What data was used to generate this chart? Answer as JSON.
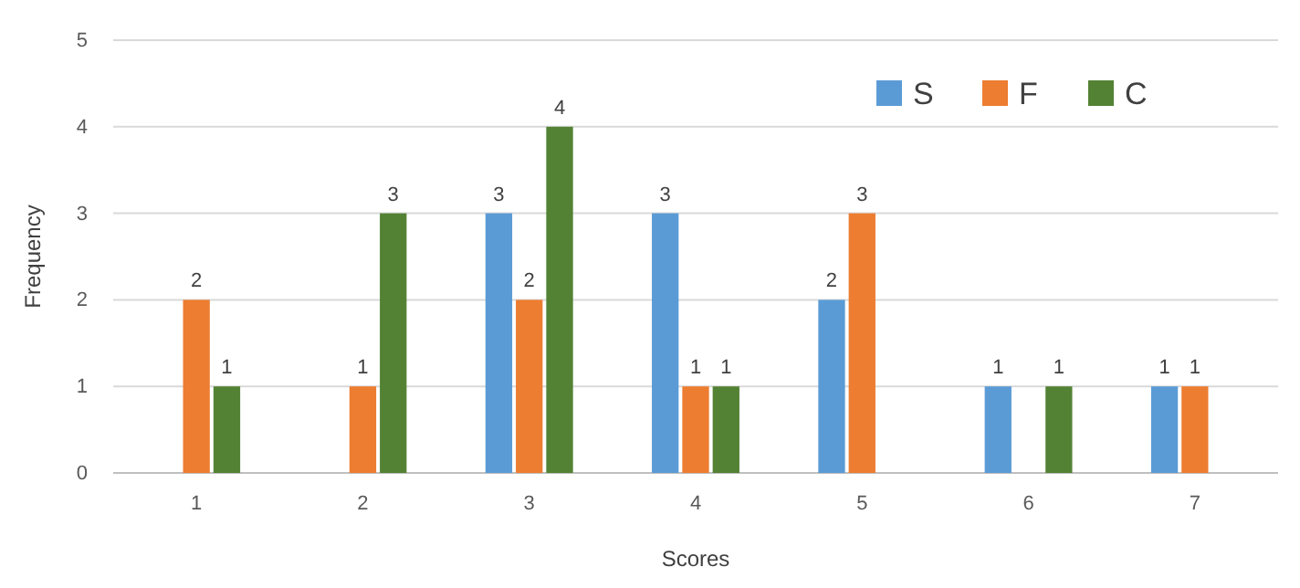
{
  "chart_data": {
    "type": "bar",
    "xlabel": "Scores",
    "ylabel": "Frequency",
    "categories": [
      "1",
      "2",
      "3",
      "4",
      "5",
      "6",
      "7"
    ],
    "series": [
      {
        "name": "S",
        "color": "#5b9bd5",
        "values": [
          null,
          null,
          3,
          3,
          2,
          1,
          1
        ]
      },
      {
        "name": "F",
        "color": "#ed7d31",
        "values": [
          2,
          1,
          2,
          1,
          3,
          null,
          1
        ]
      },
      {
        "name": "C",
        "color": "#548235",
        "values": [
          1,
          3,
          4,
          1,
          null,
          1,
          null
        ]
      }
    ],
    "ylim": [
      0,
      5
    ],
    "yticks": [
      0,
      1,
      2,
      3,
      4,
      5
    ],
    "grid": "y",
    "legend": "top right",
    "data_labels": true
  }
}
